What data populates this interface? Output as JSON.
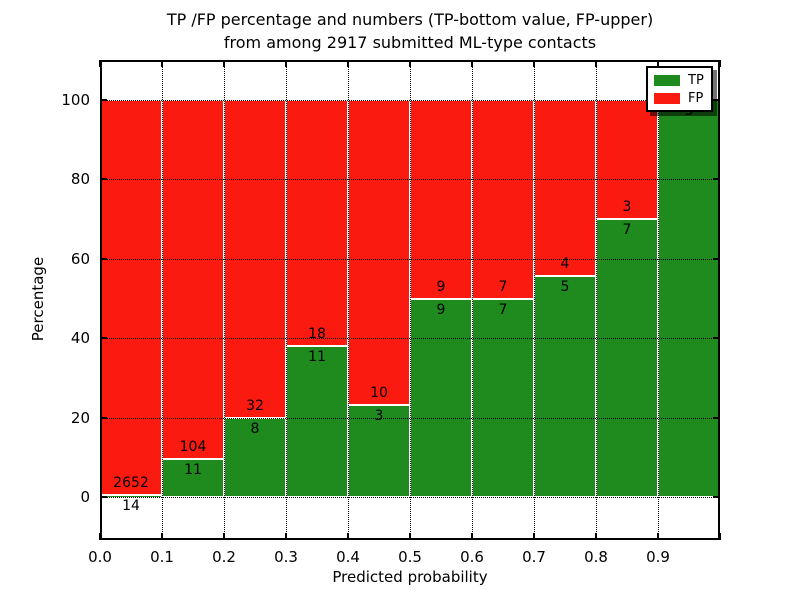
{
  "chart_data": {
    "type": "bar",
    "variant": "stacked-percentage-histogram",
    "title_lines": [
      "TP /FP percentage and numbers (TP-bottom value, FP-upper)",
      "from among 2917 submitted ML-type contacts"
    ],
    "total_contacts": "2917",
    "xlabel": "Predicted probability",
    "ylabel": "Percentage",
    "x_tick_labels": [
      "0.0",
      "0.1",
      "0.2",
      "0.3",
      "0.4",
      "0.5",
      "0.6",
      "0.7",
      "0.8",
      "0.9"
    ],
    "y_ticks": [
      0,
      20,
      40,
      60,
      80,
      100
    ],
    "xlim": [
      0.0,
      1.0
    ],
    "ylim": [
      -11,
      110
    ],
    "grid": "dotted, both axes",
    "legend": {
      "position": "upper-right",
      "entries": [
        {
          "label": "TP",
          "color": "#1f8b1f"
        },
        {
          "label": "FP",
          "color": "#fa1a10"
        }
      ]
    },
    "bins": [
      {
        "range": [
          0.0,
          0.1
        ],
        "tp": 14,
        "fp": 2652,
        "tp_pct": 0.53
      },
      {
        "range": [
          0.1,
          0.2
        ],
        "tp": 11,
        "fp": 104,
        "tp_pct": 9.57
      },
      {
        "range": [
          0.2,
          0.3
        ],
        "tp": 8,
        "fp": 32,
        "tp_pct": 20.0
      },
      {
        "range": [
          0.3,
          0.4
        ],
        "tp": 11,
        "fp": 18,
        "tp_pct": 37.93
      },
      {
        "range": [
          0.4,
          0.5
        ],
        "tp": 3,
        "fp": 10,
        "tp_pct": 23.08
      },
      {
        "range": [
          0.5,
          0.6
        ],
        "tp": 9,
        "fp": 9,
        "tp_pct": 50.0
      },
      {
        "range": [
          0.6,
          0.7
        ],
        "tp": 7,
        "fp": 7,
        "tp_pct": 50.0
      },
      {
        "range": [
          0.7,
          0.8
        ],
        "tp": 5,
        "fp": 4,
        "tp_pct": 55.56
      },
      {
        "range": [
          0.8,
          0.9
        ],
        "tp": 7,
        "fp": 3,
        "tp_pct": 70.0
      },
      {
        "range": [
          0.9,
          1.0
        ],
        "tp": 3,
        "fp": 0,
        "tp_pct": 100.0
      }
    ]
  },
  "colors": {
    "tp": "#1f8b1f",
    "fp": "#fa1a10",
    "grid": "#000000",
    "bar_edge": "#ffffff",
    "background": "#ffffff",
    "text": "#000000"
  }
}
